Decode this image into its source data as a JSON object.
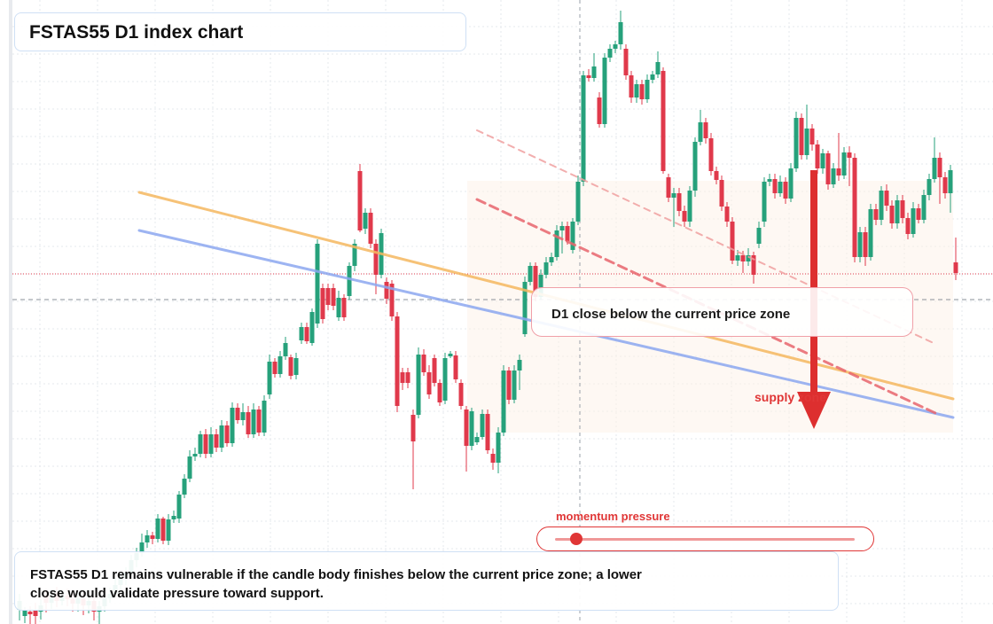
{
  "title": "FSTAS55 D1 index chart",
  "callout": "D1 close below the current price zone",
  "zone_label": "supply zone",
  "momentum_label": "momentum pressure",
  "momentum_level": 0.05,
  "note": "FSTAS55 D1 remains vulnerable if the candle body finishes below the current price zone; a lower close would validate pressure toward support.",
  "colors": {
    "up": "#26a17b",
    "down": "#e0394b",
    "accent": "#e03636",
    "trend_orange": "#f5b860",
    "trend_blue": "#8ca8f0"
  },
  "chart_data": {
    "type": "candlestick",
    "title": "FSTAS55 D1 index chart",
    "xlabel": "",
    "ylabel": "",
    "ylim": [
      0,
      704
    ],
    "grid": true,
    "current_price": 309,
    "candles": [
      [
        22,
        688,
        678,
        670,
        700
      ],
      [
        28,
        695,
        688,
        685,
        703
      ],
      [
        34,
        690,
        693,
        684,
        704
      ],
      [
        40,
        688,
        695,
        680,
        704
      ],
      [
        46,
        690,
        683,
        676,
        699
      ],
      [
        52,
        672,
        680,
        664,
        691
      ],
      [
        58,
        680,
        674,
        665,
        687
      ],
      [
        64,
        670,
        678,
        662,
        685
      ],
      [
        70,
        678,
        672,
        665,
        683
      ],
      [
        76,
        672,
        676,
        664,
        684
      ],
      [
        82,
        676,
        681,
        668,
        690
      ],
      [
        88,
        681,
        675,
        668,
        690
      ],
      [
        94,
        675,
        683,
        667,
        694
      ],
      [
        100,
        683,
        678,
        671,
        692
      ],
      [
        106,
        678,
        690,
        673,
        700
      ],
      [
        112,
        690,
        684,
        678,
        704
      ],
      [
        118,
        684,
        675,
        668,
        690
      ],
      [
        124,
        675,
        670,
        663,
        680
      ],
      [
        130,
        670,
        660,
        652,
        674
      ],
      [
        136,
        660,
        652,
        646,
        666
      ],
      [
        142,
        652,
        646,
        640,
        660
      ],
      [
        148,
        646,
        632,
        626,
        650
      ],
      [
        154,
        632,
        624,
        618,
        640
      ],
      [
        160,
        624,
        612,
        602,
        628
      ],
      [
        166,
        612,
        604,
        598,
        618
      ],
      [
        172,
        604,
        608,
        600,
        614
      ],
      [
        178,
        608,
        585,
        580,
        612
      ],
      [
        184,
        585,
        610,
        583,
        614
      ],
      [
        190,
        610,
        586,
        580,
        615
      ],
      [
        196,
        586,
        582,
        576,
        590
      ],
      [
        202,
        585,
        558,
        554,
        590
      ],
      [
        208,
        558,
        540,
        535,
        562
      ],
      [
        214,
        540,
        515,
        508,
        544
      ],
      [
        220,
        515,
        512,
        505,
        520
      ],
      [
        226,
        512,
        490,
        486,
        516
      ],
      [
        232,
        490,
        512,
        484,
        517
      ],
      [
        238,
        512,
        490,
        482,
        516
      ],
      [
        244,
        490,
        505,
        484,
        510
      ],
      [
        250,
        505,
        480,
        474,
        510
      ],
      [
        256,
        480,
        500,
        475,
        504
      ],
      [
        262,
        500,
        460,
        454,
        504
      ],
      [
        268,
        460,
        474,
        455,
        478
      ],
      [
        274,
        474,
        465,
        455,
        480
      ],
      [
        280,
        465,
        490,
        458,
        494
      ],
      [
        286,
        490,
        462,
        455,
        494
      ],
      [
        292,
        462,
        488,
        458,
        492
      ],
      [
        298,
        488,
        452,
        446,
        492
      ],
      [
        304,
        445,
        408,
        400,
        450
      ],
      [
        310,
        408,
        422,
        404,
        426
      ],
      [
        316,
        422,
        402,
        396,
        426
      ],
      [
        322,
        402,
        387,
        380,
        406
      ],
      [
        328,
        403,
        424,
        400,
        428
      ],
      [
        334,
        423,
        404,
        398,
        428
      ],
      [
        340,
        384,
        369,
        364,
        388
      ],
      [
        346,
        369,
        385,
        364,
        388
      ],
      [
        352,
        387,
        352,
        348,
        390
      ],
      [
        358,
        365,
        275,
        270,
        370
      ],
      [
        364,
        325,
        360,
        320,
        365
      ],
      [
        370,
        325,
        344,
        320,
        350
      ],
      [
        376,
        325,
        345,
        320,
        350
      ],
      [
        382,
        358,
        336,
        328,
        362
      ],
      [
        388,
        336,
        358,
        332,
        362
      ],
      [
        394,
        334,
        300,
        296,
        338
      ],
      [
        400,
        300,
        275,
        270,
        306
      ],
      [
        406,
        193,
        260,
        185,
        262
      ],
      [
        412,
        258,
        240,
        235,
        264
      ],
      [
        418,
        240,
        275,
        235,
        280
      ],
      [
        424,
        275,
        310,
        270,
        332
      ],
      [
        430,
        310,
        263,
        258,
        314
      ],
      [
        436,
        318,
        337,
        313,
        343
      ],
      [
        442,
        320,
        357,
        316,
        362
      ],
      [
        448,
        357,
        458,
        352,
        465
      ],
      [
        454,
        420,
        432,
        415,
        440
      ],
      [
        460,
        420,
        432,
        415,
        438
      ],
      [
        466,
        468,
        498,
        462,
        552
      ],
      [
        472,
        468,
        400,
        392,
        472
      ],
      [
        478,
        400,
        420,
        394,
        424
      ],
      [
        484,
        420,
        445,
        412,
        450
      ],
      [
        490,
        404,
        432,
        400,
        436
      ],
      [
        496,
        432,
        454,
        428,
        458
      ],
      [
        502,
        452,
        404,
        398,
        456
      ],
      [
        508,
        402,
        399,
        396,
        404
      ],
      [
        514,
        401,
        428,
        396,
        432
      ],
      [
        520,
        432,
        458,
        428,
        462
      ],
      [
        526,
        462,
        503,
        458,
        532
      ],
      [
        532,
        503,
        464,
        460,
        508
      ],
      [
        538,
        499,
        493,
        488,
        502
      ],
      [
        544,
        493,
        467,
        462,
        496
      ],
      [
        550,
        467,
        508,
        462,
        512
      ],
      [
        556,
        512,
        522,
        506,
        530
      ],
      [
        562,
        522,
        488,
        482,
        534
      ],
      [
        568,
        488,
        418,
        412,
        492
      ],
      [
        574,
        418,
        451,
        414,
        456
      ],
      [
        580,
        451,
        418,
        412,
        455
      ],
      [
        586,
        418,
        406,
        400,
        440
      ],
      [
        592,
        377,
        318,
        312,
        380
      ],
      [
        598,
        318,
        300,
        296,
        322
      ],
      [
        604,
        300,
        335,
        296,
        340
      ],
      [
        610,
        335,
        310,
        304,
        338
      ],
      [
        616,
        310,
        296,
        290,
        314
      ],
      [
        622,
        296,
        290,
        285,
        300
      ],
      [
        628,
        290,
        260,
        254,
        294
      ],
      [
        634,
        260,
        255,
        250,
        286
      ],
      [
        640,
        255,
        272,
        250,
        276
      ],
      [
        646,
        282,
        250,
        246,
        286
      ],
      [
        652,
        250,
        205,
        198,
        254
      ],
      [
        658,
        205,
        85,
        80,
        210
      ],
      [
        664,
        85,
        88,
        78,
        92
      ],
      [
        670,
        88,
        75,
        60,
        92
      ],
      [
        676,
        110,
        140,
        104,
        144
      ],
      [
        682,
        140,
        65,
        60,
        144
      ],
      [
        688,
        65,
        55,
        50,
        70
      ],
      [
        694,
        55,
        50,
        46,
        60
      ],
      [
        700,
        50,
        25,
        12,
        56
      ],
      [
        706,
        55,
        85,
        50,
        90
      ],
      [
        712,
        85,
        110,
        80,
        116
      ],
      [
        718,
        110,
        95,
        90,
        116
      ],
      [
        724,
        95,
        112,
        90,
        118
      ],
      [
        730,
        112,
        90,
        84,
        116
      ],
      [
        736,
        90,
        84,
        80,
        94
      ],
      [
        742,
        84,
        70,
        58,
        88
      ],
      [
        748,
        80,
        193,
        76,
        196
      ],
      [
        754,
        200,
        223,
        196,
        228
      ],
      [
        760,
        223,
        218,
        212,
        256
      ],
      [
        766,
        218,
        238,
        212,
        244
      ],
      [
        772,
        238,
        250,
        232,
        256
      ],
      [
        778,
        250,
        215,
        210,
        256
      ],
      [
        784,
        215,
        160,
        155,
        222
      ],
      [
        790,
        160,
        138,
        124,
        164
      ],
      [
        796,
        138,
        156,
        133,
        162
      ],
      [
        802,
        156,
        193,
        150,
        198
      ],
      [
        808,
        193,
        203,
        188,
        208
      ],
      [
        814,
        203,
        233,
        198,
        238
      ],
      [
        820,
        233,
        250,
        228,
        256
      ],
      [
        826,
        250,
        294,
        245,
        298
      ],
      [
        832,
        294,
        288,
        282,
        300
      ],
      [
        838,
        288,
        295,
        283,
        308
      ],
      [
        844,
        295,
        288,
        280,
        300
      ],
      [
        850,
        288,
        310,
        284,
        320
      ],
      [
        856,
        275,
        257,
        250,
        280
      ],
      [
        862,
        250,
        205,
        200,
        256
      ],
      [
        868,
        205,
        202,
        196,
        210
      ],
      [
        874,
        202,
        218,
        196,
        224
      ],
      [
        880,
        218,
        205,
        198,
        222
      ],
      [
        886,
        205,
        224,
        200,
        230
      ],
      [
        892,
        224,
        190,
        184,
        228
      ],
      [
        898,
        190,
        133,
        126,
        194
      ],
      [
        904,
        133,
        175,
        128,
        180
      ],
      [
        910,
        175,
        145,
        118,
        180
      ],
      [
        916,
        145,
        163,
        140,
        170
      ],
      [
        922,
        163,
        190,
        158,
        196
      ],
      [
        928,
        190,
        173,
        168,
        196
      ],
      [
        934,
        173,
        208,
        170,
        214
      ],
      [
        940,
        208,
        190,
        184,
        212
      ],
      [
        946,
        190,
        198,
        150,
        204
      ],
      [
        952,
        198,
        172,
        166,
        202
      ],
      [
        958,
        172,
        178,
        165,
        210
      ],
      [
        964,
        178,
        290,
        173,
        296
      ],
      [
        970,
        290,
        262,
        256,
        296
      ],
      [
        976,
        262,
        290,
        256,
        300
      ],
      [
        982,
        290,
        236,
        230,
        294
      ],
      [
        988,
        236,
        248,
        230,
        254
      ],
      [
        994,
        248,
        215,
        210,
        254
      ],
      [
        1000,
        215,
        232,
        208,
        238
      ],
      [
        1006,
        232,
        252,
        226,
        258
      ],
      [
        1012,
        252,
        226,
        220,
        258
      ],
      [
        1018,
        226,
        246,
        220,
        252
      ],
      [
        1024,
        246,
        264,
        240,
        270
      ],
      [
        1030,
        264,
        235,
        228,
        268
      ],
      [
        1036,
        235,
        248,
        230,
        252
      ],
      [
        1042,
        248,
        220,
        214,
        252
      ],
      [
        1048,
        220,
        202,
        196,
        226
      ],
      [
        1054,
        202,
        178,
        155,
        206
      ],
      [
        1060,
        178,
        200,
        172,
        230
      ],
      [
        1066,
        200,
        218,
        194,
        224
      ],
      [
        1072,
        218,
        192,
        186,
        240
      ],
      [
        1078,
        296,
        308,
        268,
        316
      ]
    ],
    "trendlines": [
      {
        "color": "#f5b860",
        "from": [
          157,
          217
        ],
        "to": [
          1075,
          450
        ]
      },
      {
        "color": "#8ca8f0",
        "from": [
          157,
          260
        ],
        "to": [
          1075,
          471
        ]
      },
      {
        "color": "#e8666e",
        "dashed": true,
        "from": [
          538,
          225
        ],
        "to": [
          1055,
          466
        ]
      },
      {
        "color": "#f0a0a0",
        "dashed": true,
        "from": [
          538,
          147
        ],
        "to": [
          1055,
          388
        ]
      }
    ],
    "supply_zone": {
      "x": [
        527,
        1075
      ],
      "y": [
        204,
        488
      ]
    },
    "arrow": {
      "x": 918,
      "from": 192,
      "to": 484
    }
  }
}
